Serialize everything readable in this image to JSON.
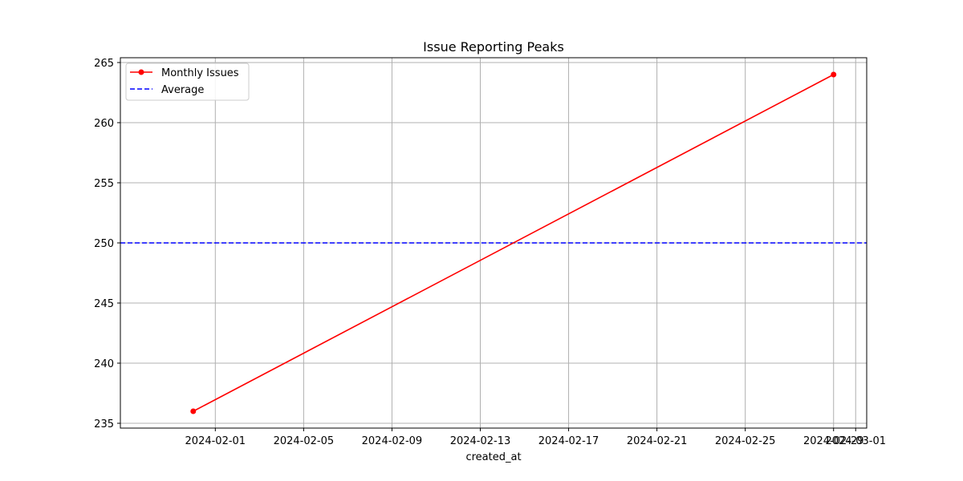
{
  "chart_data": {
    "type": "line",
    "title": "Issue Reporting Peaks",
    "xlabel": "created_at",
    "ylabel": "",
    "x_ticks": [
      "2024-02-01",
      "2024-02-05",
      "2024-02-09",
      "2024-02-13",
      "2024-02-17",
      "2024-02-21",
      "2024-02-25",
      "2024-02-29",
      "2024-03-01"
    ],
    "y_ticks": [
      235,
      240,
      245,
      250,
      255,
      260,
      265
    ],
    "xlim": [
      "2024-01-27T16:48",
      "2024-03-01T12:00"
    ],
    "ylim": [
      234.6,
      265.4
    ],
    "grid": true,
    "legend_position": "top-left",
    "series": [
      {
        "name": "Monthly Issues",
        "color": "#ff0000",
        "style": "solid",
        "marker": "circle",
        "x": [
          "2024-01-31",
          "2024-02-29"
        ],
        "y": [
          236,
          264
        ]
      }
    ],
    "hlines": [
      {
        "name": "Average",
        "y": 250,
        "color": "#0000ff",
        "style": "dashed"
      }
    ]
  }
}
